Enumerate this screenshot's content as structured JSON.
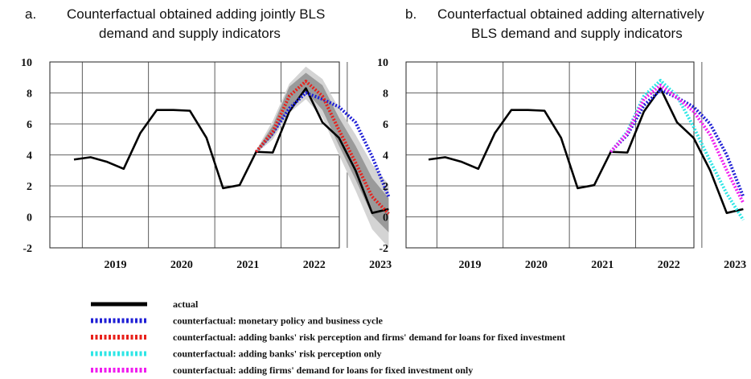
{
  "panels": [
    {
      "label": "a.",
      "title_line1": "Counterfactual obtained adding jointly BLS",
      "title_line2": "demand and supply indicators"
    },
    {
      "label": "b.",
      "title_line1": "Counterfactual obtained adding alternatively",
      "title_line2": "BLS demand and supply indicators"
    }
  ],
  "legend": [
    {
      "label": "actual",
      "color": "#000000",
      "style": "solid"
    },
    {
      "label": "counterfactual: monetary policy and business cycle",
      "color": "#1f1fd6",
      "style": "dotted"
    },
    {
      "label": "counterfactual: adding banks' risk perception and firms' demand for loans for fixed investment",
      "color": "#e8211b",
      "style": "dotted"
    },
    {
      "label": "counterfactual: adding banks' risk perception only",
      "color": "#2ee6e6",
      "style": "dotted"
    },
    {
      "label": "counterfactual: adding firms' demand for loans for fixed investment only",
      "color": "#f01ef0",
      "style": "dotted"
    }
  ],
  "chart_data": [
    {
      "type": "line",
      "title": "Counterfactual obtained adding jointly BLS demand and supply indicators",
      "x_tick_labels": [
        "2019",
        "2020",
        "2021",
        "2022",
        "2023"
      ],
      "y_ticks": [
        -2,
        0,
        2,
        4,
        6,
        8,
        10
      ],
      "ylim": [
        -2,
        10
      ],
      "x": [
        "2018Q4",
        "2019Q1",
        "2019Q2",
        "2019Q3",
        "2019Q4",
        "2020Q1",
        "2020Q2",
        "2020Q3",
        "2020Q4",
        "2021Q1",
        "2021Q2",
        "2021Q3",
        "2021Q4",
        "2022Q1",
        "2022Q2",
        "2022Q3",
        "2022Q4",
        "2023Q1",
        "2023Q2",
        "2023Q3"
      ],
      "series": [
        {
          "name": "actual",
          "color": "#000000",
          "style": "solid",
          "values": [
            3.7,
            3.85,
            3.55,
            3.1,
            5.4,
            6.9,
            6.9,
            6.85,
            5.1,
            1.85,
            2.05,
            4.2,
            4.15,
            6.8,
            8.3,
            6.1,
            5.1,
            3.0,
            0.25,
            0.5
          ]
        },
        {
          "name": "counterfactual: monetary policy and business cycle",
          "color": "#1f1fd6",
          "style": "dotted",
          "values": [
            null,
            null,
            null,
            null,
            null,
            null,
            null,
            null,
            null,
            null,
            null,
            4.2,
            5.4,
            7.0,
            8.0,
            7.6,
            7.1,
            6.1,
            3.9,
            1.3
          ]
        },
        {
          "name": "counterfactual: adding banks' risk perception and firms' demand for loans for fixed investment",
          "color": "#e8211b",
          "style": "dotted",
          "values": [
            null,
            null,
            null,
            null,
            null,
            null,
            null,
            null,
            null,
            null,
            null,
            4.2,
            5.5,
            7.8,
            8.75,
            7.8,
            5.6,
            3.5,
            1.3,
            0.2
          ]
        }
      ],
      "bands": [
        {
          "lower": [
            null,
            null,
            null,
            null,
            null,
            null,
            null,
            null,
            null,
            null,
            null,
            4.1,
            5.0,
            6.7,
            7.6,
            6.4,
            4.0,
            1.7,
            -0.8,
            -2.0
          ],
          "upper": [
            null,
            null,
            null,
            null,
            null,
            null,
            null,
            null,
            null,
            null,
            null,
            4.3,
            6.2,
            8.6,
            9.7,
            8.9,
            7.0,
            5.3,
            3.4,
            2.1
          ],
          "color": "#d4d4d4"
        },
        {
          "lower": [
            null,
            null,
            null,
            null,
            null,
            null,
            null,
            null,
            null,
            null,
            null,
            4.15,
            5.2,
            7.0,
            8.1,
            6.9,
            4.6,
            2.4,
            0.1,
            -1.0
          ],
          "upper": [
            null,
            null,
            null,
            null,
            null,
            null,
            null,
            null,
            null,
            null,
            null,
            4.25,
            5.9,
            8.4,
            9.3,
            8.5,
            6.4,
            4.6,
            2.5,
            1.2
          ],
          "color": "#9a9a9a"
        }
      ]
    },
    {
      "type": "line",
      "title": "Counterfactual obtained adding alternatively BLS demand and supply indicators",
      "x_tick_labels": [
        "2019",
        "2020",
        "2021",
        "2022",
        "2023"
      ],
      "y_ticks": [
        -2,
        0,
        2,
        4,
        6,
        8,
        10
      ],
      "ylim": [
        -2,
        10
      ],
      "x": [
        "2018Q4",
        "2019Q1",
        "2019Q2",
        "2019Q3",
        "2019Q4",
        "2020Q1",
        "2020Q2",
        "2020Q3",
        "2020Q4",
        "2021Q1",
        "2021Q2",
        "2021Q3",
        "2021Q4",
        "2022Q1",
        "2022Q2",
        "2022Q3",
        "2022Q4",
        "2023Q1",
        "2023Q2",
        "2023Q3"
      ],
      "series": [
        {
          "name": "actual",
          "color": "#000000",
          "style": "solid",
          "values": [
            3.7,
            3.85,
            3.55,
            3.1,
            5.4,
            6.9,
            6.9,
            6.85,
            5.1,
            1.85,
            2.05,
            4.2,
            4.15,
            6.8,
            8.3,
            6.1,
            5.1,
            3.0,
            0.25,
            0.5
          ]
        },
        {
          "name": "counterfactual: monetary policy and business cycle",
          "color": "#1f1fd6",
          "style": "dotted",
          "values": [
            null,
            null,
            null,
            null,
            null,
            null,
            null,
            null,
            null,
            null,
            null,
            4.2,
            5.3,
            7.2,
            8.2,
            7.7,
            7.1,
            6.0,
            4.0,
            1.3
          ]
        },
        {
          "name": "counterfactual: adding banks' risk perception only",
          "color": "#2ee6e6",
          "style": "dotted",
          "values": [
            null,
            null,
            null,
            null,
            null,
            null,
            null,
            null,
            null,
            null,
            null,
            4.2,
            5.5,
            7.8,
            8.8,
            7.8,
            5.8,
            3.6,
            1.5,
            -0.2
          ]
        },
        {
          "name": "counterfactual: adding firms' demand for loans for fixed investment only",
          "color": "#f01ef0",
          "style": "dotted",
          "values": [
            null,
            null,
            null,
            null,
            null,
            null,
            null,
            null,
            null,
            null,
            null,
            4.2,
            5.4,
            7.6,
            8.5,
            7.7,
            6.8,
            5.3,
            3.0,
            0.9
          ]
        }
      ]
    }
  ]
}
